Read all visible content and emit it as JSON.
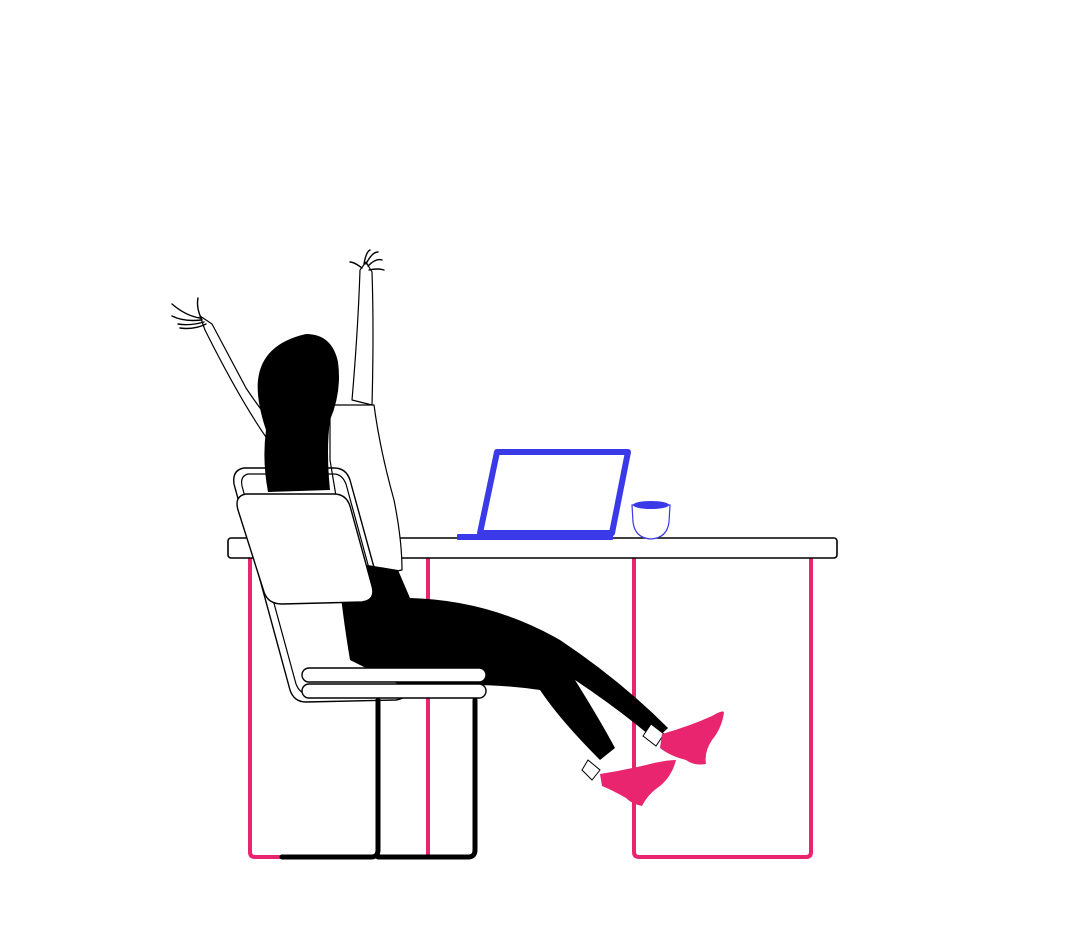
{
  "scene": {
    "subject": "woman-stretching-at-desk",
    "icons": [
      "person-icon",
      "desk-icon",
      "laptop-icon",
      "mug-icon",
      "chair-icon",
      "shoes-icon"
    ]
  },
  "colors": {
    "background": "#ffffff",
    "ink": "#000000",
    "accent_pink": "#e8256e",
    "accent_blue": "#3a3ae8"
  }
}
